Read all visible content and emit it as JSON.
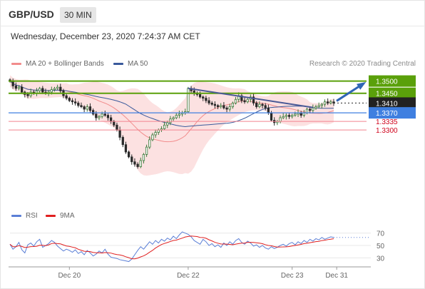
{
  "header": {
    "pair": "GBP/USD",
    "timeframe": "30 MIN",
    "datetime": "Wednesday, December 23, 2020 7:24:37 AM CET"
  },
  "legend": {
    "ma20_label": "MA 20 + Bollinger Bands",
    "ma50_label": "MA 50",
    "credit": "Research © 2020 Trading Central"
  },
  "rsi_legend": {
    "rsi_label": "RSI",
    "ma_label": "9MA"
  },
  "colors": {
    "resistance": "#5aa00a",
    "support": "#f2838f",
    "pivot": "#3f7fe0",
    "current": "#222222",
    "ma20": "#f28c8c",
    "ma50": "#3a5a9c",
    "bands": "#f9c9c9",
    "rsi": "#5b7fd6",
    "rsi_ma": "#e02020",
    "candle_up": "#3c7a3a",
    "candle_down": "#2a2a2a",
    "arrow": "#2f65b5",
    "trendline": "#4a5a96"
  },
  "chart_data": {
    "type": "candlestick",
    "price_levels": [
      {
        "value": 1.35,
        "label": "1.3500",
        "kind": "resistance"
      },
      {
        "value": 1.345,
        "label": "1.3450",
        "kind": "resistance"
      },
      {
        "value": 1.341,
        "label": "1.3410",
        "kind": "current"
      },
      {
        "value": 1.337,
        "label": "1.3370",
        "kind": "pivot"
      },
      {
        "value": 1.3335,
        "label": "1.3335",
        "kind": "support"
      },
      {
        "value": 1.33,
        "label": "1.3300",
        "kind": "support"
      }
    ],
    "y_range": [
      1.3,
      1.3525
    ],
    "x_labels": [
      "Dec 20",
      "Dec 22",
      "Dec 23",
      "Dec 31"
    ],
    "x_label_index": [
      20,
      60,
      95,
      110
    ],
    "x_count": 110,
    "close": [
      1.35,
      1.348,
      1.347,
      1.3475,
      1.3455,
      1.3445,
      1.344,
      1.3455,
      1.345,
      1.346,
      1.347,
      1.3455,
      1.345,
      1.3455,
      1.3465,
      1.347,
      1.3475,
      1.346,
      1.344,
      1.343,
      1.342,
      1.3415,
      1.341,
      1.34,
      1.3395,
      1.3385,
      1.3395,
      1.338,
      1.3365,
      1.335,
      1.3355,
      1.3365,
      1.336,
      1.335,
      1.3335,
      1.332,
      1.33,
      1.327,
      1.324,
      1.321,
      1.319,
      1.317,
      1.316,
      1.315,
      1.3175,
      1.32,
      1.323,
      1.326,
      1.328,
      1.329,
      1.33,
      1.3305,
      1.332,
      1.333,
      1.3345,
      1.335,
      1.336,
      1.3365,
      1.337,
      1.3375,
      1.347,
      1.346,
      1.345,
      1.3445,
      1.3435,
      1.343,
      1.342,
      1.341,
      1.3405,
      1.34,
      1.3395,
      1.34,
      1.339,
      1.3385,
      1.3395,
      1.341,
      1.3425,
      1.344,
      1.342,
      1.3415,
      1.3425,
      1.3435,
      1.341,
      1.3395,
      1.3405,
      1.34,
      1.339,
      1.337,
      1.334,
      1.333,
      1.3335,
      1.335,
      1.3355,
      1.336,
      1.3355,
      1.336,
      1.3365,
      1.337,
      1.336,
      1.337,
      1.3385,
      1.338,
      1.339,
      1.3395,
      1.34,
      1.3405,
      1.3415,
      1.341,
      1.3415,
      1.341
    ],
    "rsi_levels": [
      70,
      50,
      30
    ],
    "rsi_range": [
      20,
      80
    ],
    "rsi": [
      52,
      44,
      48,
      55,
      43,
      38,
      51,
      54,
      49,
      56,
      60,
      47,
      50,
      53,
      58,
      55,
      49,
      45,
      41,
      44,
      42,
      39,
      43,
      37,
      40,
      35,
      42,
      38,
      33,
      36,
      41,
      38,
      44,
      36,
      31,
      30,
      29,
      27,
      26,
      25,
      24,
      28,
      35,
      42,
      48,
      44,
      50,
      56,
      52,
      58,
      54,
      60,
      57,
      62,
      59,
      65,
      61,
      67,
      72,
      70,
      68,
      64,
      58,
      55,
      52,
      60,
      56,
      50,
      53,
      48,
      51,
      47,
      54,
      50,
      56,
      52,
      58,
      61,
      55,
      52,
      57,
      54,
      49,
      51,
      47,
      50,
      46,
      44,
      48,
      45,
      47,
      50,
      52,
      49,
      53,
      55,
      51,
      56,
      53,
      58,
      55,
      60,
      57,
      61,
      59,
      63,
      60,
      62,
      64,
      63
    ]
  }
}
